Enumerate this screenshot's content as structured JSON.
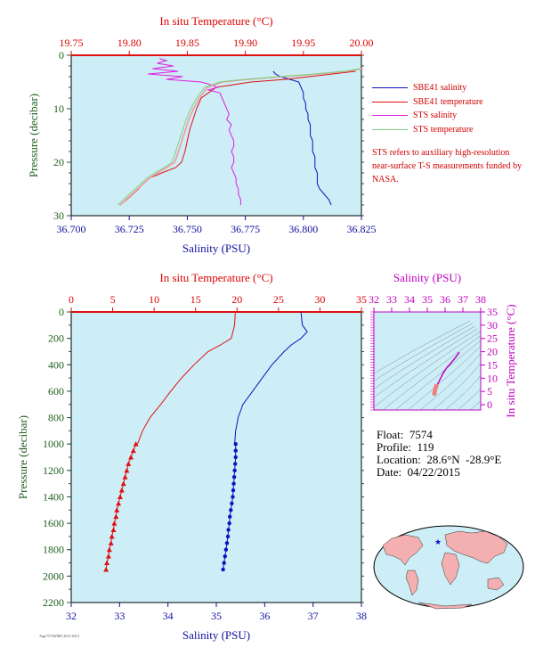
{
  "colors": {
    "plot_bg": "#cdeef7",
    "salinity": "#1010c0",
    "temperature": "#e01010",
    "sts_salinity": "#e020e0",
    "sts_temperature": "#7ad27a",
    "sts_temperature_pink": "#f29aa0",
    "ts_diagram": "#c000c0",
    "pressure_axis": "#1f5f1f"
  },
  "top_panel": {
    "title_top": "In situ Temperature (°C)",
    "xlabel_bottom": "Salinity (PSU)",
    "ylabel": "Pressure (decibar)",
    "temp_ticks": [
      "19.75",
      "19.80",
      "19.85",
      "19.90",
      "19.95",
      "20.00"
    ],
    "sal_ticks": [
      "36.700",
      "36.725",
      "36.750",
      "36.775",
      "36.800",
      "36.825"
    ],
    "pres_ticks": [
      "0",
      "10",
      "20",
      "30"
    ]
  },
  "legend": {
    "entries": [
      {
        "label": "SBE41 salinity",
        "color": "#1010c0"
      },
      {
        "label": "SBE41 temperature",
        "color": "#e01010"
      },
      {
        "label": "STS salinity",
        "color": "#e020e0"
      },
      {
        "label": "STS temperature",
        "color": "#7ad27a"
      }
    ],
    "note": "STS refers to auxiliary high-resolution near-surface T-S measurements funded by NASA."
  },
  "bottom_panel": {
    "title_top": "In situ Temperature (°C)",
    "xlabel_bottom": "Salinity (PSU)",
    "ylabel": "Pressure (decibar)",
    "temp_ticks": [
      "0",
      "5",
      "10",
      "15",
      "20",
      "25",
      "30",
      "35"
    ],
    "sal_ticks": [
      "32",
      "33",
      "34",
      "35",
      "36",
      "37",
      "38"
    ],
    "pres_ticks": [
      "0",
      "200",
      "400",
      "600",
      "800",
      "1000",
      "1200",
      "1400",
      "1600",
      "1800",
      "2000",
      "2200"
    ]
  },
  "ts_panel": {
    "title_top": "Salinity (PSU)",
    "ylabel_right": "In situ Temperature (°C)",
    "sal_ticks": [
      "32",
      "33",
      "34",
      "35",
      "36",
      "37",
      "38"
    ],
    "temp_ticks": [
      "0",
      "5",
      "10",
      "15",
      "20",
      "25",
      "30",
      "35"
    ]
  },
  "info": {
    "float": "Float:  7574",
    "profile": "Profile:  119",
    "location": "Location:  28.6°N  -28.9°E",
    "date": "Date:  04/22/2015"
  },
  "footer_code": "Argo7574WMO 2015-0474",
  "chart_data": [
    {
      "type": "line",
      "title": "",
      "xlabel_top": "In situ Temperature (°C)",
      "xlabel": "Salinity (PSU)",
      "ylabel": "Pressure (decibar)",
      "xlim_temperature": [
        19.75,
        20.0
      ],
      "xlim_salinity": [
        36.7,
        36.825
      ],
      "ylim": [
        30,
        0
      ],
      "series": [
        {
          "name": "SBE41 salinity",
          "axis": "salinity",
          "pressure": [
            3.0,
            3.5,
            4.0,
            4.6,
            5.0,
            6,
            7,
            8,
            9,
            10,
            11,
            12,
            13,
            14,
            15,
            16,
            17,
            18,
            19,
            20,
            21,
            22,
            23,
            24,
            25,
            26,
            27,
            28
          ],
          "values": [
            36.787,
            36.788,
            36.79,
            36.795,
            36.798,
            36.799,
            36.8,
            36.8,
            36.801,
            36.801,
            36.802,
            36.802,
            36.803,
            36.803,
            36.803,
            36.804,
            36.804,
            36.804,
            36.805,
            36.805,
            36.805,
            36.806,
            36.806,
            36.806,
            36.807,
            36.809,
            36.811,
            36.812
          ]
        },
        {
          "name": "SBE41 temperature",
          "axis": "temperature",
          "pressure": [
            3.0,
            3.5,
            4.0,
            4.5,
            5.0,
            6,
            8,
            10,
            12,
            14,
            16,
            18,
            20,
            21,
            22,
            23,
            24,
            25,
            26,
            27,
            28
          ],
          "values": [
            19.995,
            19.975,
            19.955,
            19.935,
            19.905,
            19.875,
            19.862,
            19.858,
            19.855,
            19.852,
            19.85,
            19.848,
            19.845,
            19.84,
            19.828,
            19.817,
            19.812,
            19.808,
            19.803,
            19.798,
            19.792
          ]
        },
        {
          "name": "STS salinity",
          "axis": "salinity",
          "pressure": [
            0.6,
            1,
            1.5,
            2,
            2.5,
            3,
            3.5,
            4,
            4.5,
            5,
            5.5,
            6,
            6.5,
            7,
            8,
            9,
            10,
            11,
            12,
            13,
            14,
            15,
            16,
            17,
            18,
            19,
            20,
            21,
            22,
            23,
            24,
            25,
            26,
            27,
            28
          ],
          "values": [
            36.738,
            36.741,
            36.737,
            36.744,
            36.735,
            36.746,
            36.733,
            36.748,
            36.741,
            36.756,
            36.76,
            36.763,
            36.759,
            36.764,
            36.765,
            36.766,
            36.767,
            36.768,
            36.767,
            36.769,
            36.768,
            36.769,
            36.77,
            36.77,
            36.769,
            36.77,
            36.77,
            36.769,
            36.77,
            36.771,
            36.771,
            36.772,
            36.772,
            36.773,
            36.773
          ]
        },
        {
          "name": "STS temperature",
          "axis": "temperature",
          "pressure": [
            2.5,
            3.0,
            3.5,
            4.0,
            4.5,
            5,
            6,
            8,
            10,
            12,
            14,
            16,
            18,
            20,
            21,
            22,
            23,
            24,
            25,
            26,
            27,
            28
          ],
          "values": [
            19.999,
            19.985,
            19.96,
            19.93,
            19.9,
            19.878,
            19.865,
            19.858,
            19.853,
            19.849,
            19.846,
            19.843,
            19.84,
            19.837,
            19.83,
            19.822,
            19.815,
            19.81,
            19.805,
            19.8,
            19.795,
            19.79
          ]
        }
      ]
    },
    {
      "type": "line",
      "title": "",
      "xlabel_top": "In situ Temperature (°C)",
      "xlabel": "Salinity (PSU)",
      "ylabel": "Pressure (decibar)",
      "xlim_temperature": [
        0,
        35
      ],
      "xlim_salinity": [
        32,
        38
      ],
      "ylim": [
        2200,
        0
      ],
      "series": [
        {
          "name": "Temperature",
          "axis": "temperature",
          "pressure": [
            0,
            100,
            200,
            250,
            300,
            400,
            500,
            600,
            700,
            800,
            900,
            1000
          ],
          "values": [
            19.8,
            19.7,
            19.3,
            18.0,
            16.5,
            14.8,
            13.3,
            12.0,
            10.8,
            9.5,
            8.6,
            8.0
          ]
        },
        {
          "name": "Temperature (deep samples)",
          "axis": "temperature",
          "pressure": [
            1000,
            1050,
            1100,
            1150,
            1200,
            1250,
            1300,
            1350,
            1400,
            1450,
            1500,
            1550,
            1600,
            1650,
            1700,
            1750,
            1800,
            1850,
            1900,
            1950
          ],
          "values": [
            7.8,
            7.5,
            7.2,
            6.9,
            6.7,
            6.5,
            6.3,
            6.1,
            5.9,
            5.7,
            5.5,
            5.4,
            5.2,
            5.1,
            4.9,
            4.8,
            4.6,
            4.5,
            4.3,
            4.2
          ]
        },
        {
          "name": "Salinity",
          "axis": "salinity",
          "pressure": [
            0,
            100,
            150,
            200,
            250,
            300,
            400,
            500,
            600,
            700,
            800,
            900,
            1000
          ],
          "values": [
            36.75,
            36.78,
            36.88,
            36.75,
            36.55,
            36.4,
            36.15,
            35.95,
            35.75,
            35.55,
            35.45,
            35.4,
            35.38
          ]
        },
        {
          "name": "Salinity (deep samples)",
          "axis": "salinity",
          "pressure": [
            1000,
            1050,
            1100,
            1150,
            1200,
            1250,
            1300,
            1350,
            1400,
            1450,
            1500,
            1550,
            1600,
            1650,
            1700,
            1750,
            1800,
            1850,
            1900,
            1950
          ],
          "values": [
            35.4,
            35.4,
            35.4,
            35.39,
            35.38,
            35.37,
            35.36,
            35.35,
            35.34,
            35.32,
            35.3,
            35.28,
            35.27,
            35.25,
            35.24,
            35.22,
            35.2,
            35.18,
            35.16,
            35.14
          ]
        }
      ]
    },
    {
      "type": "scatter",
      "title": "",
      "xlabel": "Salinity (PSU)",
      "ylabel": "In situ Temperature (°C)",
      "xlim": [
        32,
        38
      ],
      "ylim": [
        -2,
        35
      ],
      "series": [
        {
          "name": "T-S profile",
          "x": [
            35.4,
            35.42,
            35.45,
            35.5,
            35.6,
            35.75,
            35.9,
            36.1,
            36.3,
            36.55,
            36.8
          ],
          "y": [
            4.2,
            5.0,
            6.0,
            7.0,
            8.0,
            10.0,
            12.0,
            14.0,
            15.5,
            17.5,
            19.8
          ]
        }
      ]
    }
  ]
}
